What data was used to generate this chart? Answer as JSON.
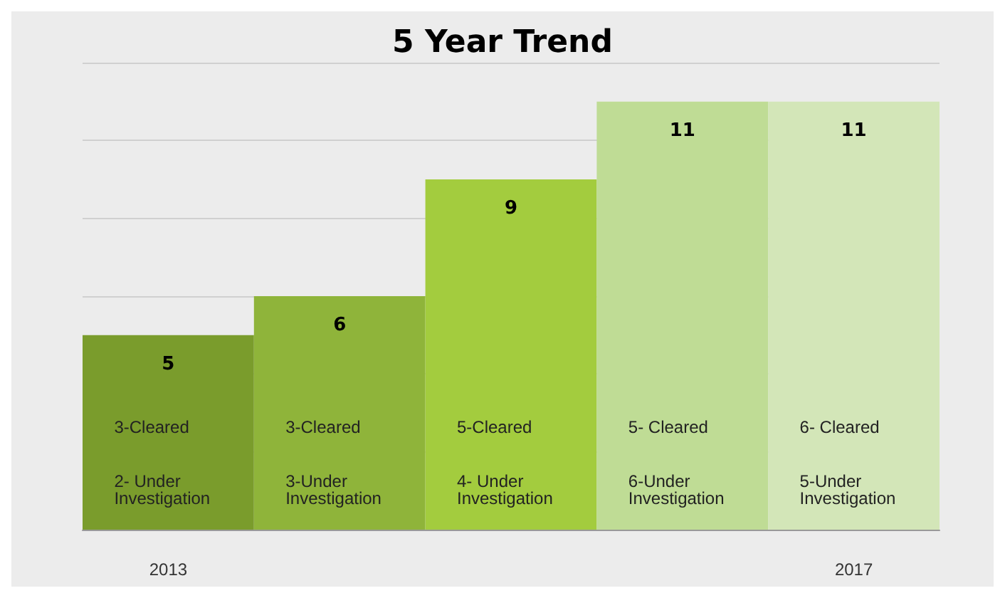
{
  "chart_data": {
    "type": "bar",
    "title": "5 Year Trend",
    "categories": [
      "2013",
      null,
      null,
      null,
      "2017"
    ],
    "values": [
      5,
      6,
      9,
      11,
      11
    ],
    "colors": [
      "#7a9c2c",
      "#8fb43a",
      "#a3cc3e",
      "#bfdc95",
      "#d3e6b8"
    ],
    "ylim": [
      0,
      12
    ],
    "yticks": [
      0,
      2,
      4,
      6,
      8,
      10,
      12
    ],
    "grid": "y",
    "tick_labels": "x",
    "data_labels": true,
    "annotations": [
      "3-Cleared",
      "2- Under Investigation",
      "3-Cleared",
      "3-Under Investigation",
      "5-Cleared",
      "4- Under Investigation",
      "5- Cleared",
      "6-Under Investigation",
      "6- Cleared",
      "5-Under Investigation"
    ]
  }
}
